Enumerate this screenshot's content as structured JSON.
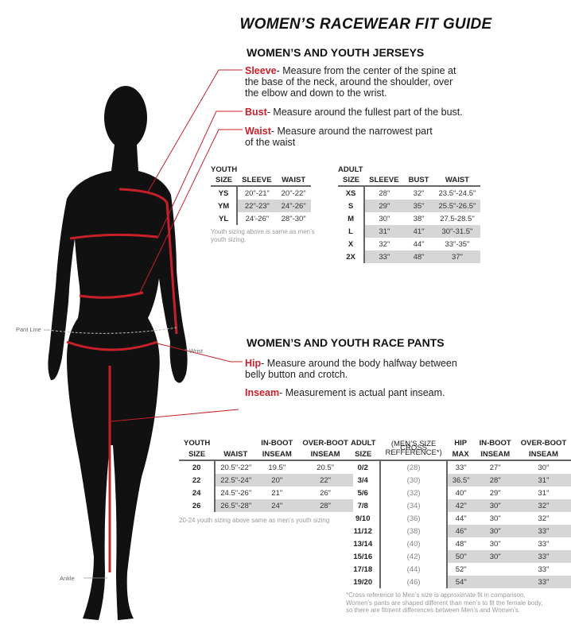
{
  "title": "WOMEN’S RACEWEAR FIT GUIDE",
  "jerseys": {
    "heading": "WOMEN’S AND YOUTH JERSEYS",
    "sleeve": {
      "term": "Sleeve",
      "text": "- Measure from the center of the spine at the base of the neck, around the shoulder, over the elbow and down to the wrist."
    },
    "bust": {
      "term": "Bust",
      "text": "- Measure around the fullest part of the bust."
    },
    "waist": {
      "term": "Waist",
      "text": "- Measure around the narrowest part of the waist"
    },
    "youth": {
      "caption": "YOUTH",
      "headers": [
        "SIZE",
        "SLEEVE",
        "WAIST"
      ],
      "rows": [
        [
          "YS",
          "20\"-21\"",
          "20\"-22\""
        ],
        [
          "YM",
          "22\"-23\"",
          "24\"-26\""
        ],
        [
          "YL",
          "24'-26\"",
          "28\"-30\""
        ]
      ],
      "note": "Youth sizing above is same as men’s youth sizing."
    },
    "adult": {
      "caption": "ADULT",
      "headers": [
        "SIZE",
        "SLEEVE",
        "BUST",
        "WAIST"
      ],
      "rows": [
        [
          "XS",
          "28\"",
          "32\"",
          "23.5\"-24.5\""
        ],
        [
          "S",
          "29\"",
          "35\"",
          "25.5\"-26.5\""
        ],
        [
          "M",
          "30\"",
          "38\"",
          "27.5-28.5\""
        ],
        [
          "L",
          "31\"",
          "41\"",
          "30\"-31.5\""
        ],
        [
          "X",
          "32\"",
          "44\"",
          "33\"-35\""
        ],
        [
          "2X",
          "33\"",
          "48\"",
          "37\""
        ]
      ]
    }
  },
  "pants": {
    "heading": "WOMEN’S AND YOUTH RACE PANTS",
    "hip": {
      "term": "Hip",
      "text": "- Measure around the body halfway between belly button and crotch."
    },
    "inseam": {
      "term": "Inseam",
      "text": "- Measurement is actual pant inseam."
    },
    "youth": {
      "caption": "YOUTH",
      "headers": [
        "SIZE",
        "WAIST",
        "IN-BOOT INSEAM",
        "OVER-BOOT INSEAM"
      ],
      "header_top": [
        "",
        "",
        "IN-BOOT",
        "OVER-BOOT"
      ],
      "header_bottom": [
        "SIZE",
        "WAIST",
        "INSEAM",
        "INSEAM"
      ],
      "rows": [
        [
          "20",
          "20.5\"-22\"",
          "19.5\"",
          "20.5\""
        ],
        [
          "22",
          "22.5\"-24\"",
          "20\"",
          "22\""
        ],
        [
          "24",
          "24.5\"-26\"",
          "21\"",
          "26\""
        ],
        [
          "26",
          "26.5\"-28\"",
          "24\"",
          "28\""
        ]
      ],
      "note": "20-24 youth sizing above same as men’s youth sizing"
    },
    "adult": {
      "caption": "ADULT",
      "cross_ref_label": "(MEN’S SIZE CROSS REFFERENCE*)",
      "header_top": [
        "",
        "",
        "HIP",
        "IN-BOOT",
        "OVER-BOOT"
      ],
      "header_bottom": [
        "SIZE",
        "",
        "MAX",
        "INSEAM",
        "INSEAM"
      ],
      "rows": [
        [
          "0/2",
          "(28)",
          "33\"",
          "27\"",
          "30\""
        ],
        [
          "3/4",
          "(30)",
          "36.5\"",
          "28\"",
          "31\""
        ],
        [
          "5/6",
          "(32)",
          "40\"",
          "29\"",
          "31\""
        ],
        [
          "7/8",
          "(34)",
          "42\"",
          "30\"",
          "32\""
        ],
        [
          "9/10",
          "(36)",
          "44\"",
          "30\"",
          "32\""
        ],
        [
          "11/12",
          "(38)",
          "46\"",
          "30\"",
          "33\""
        ],
        [
          "13/14",
          "(40)",
          "48\"",
          "30\"",
          "33\""
        ],
        [
          "15/16",
          "(42)",
          "50\"",
          "30\"",
          "33\""
        ],
        [
          "17/18",
          "(44)",
          "52\"",
          "",
          "33\""
        ],
        [
          "19/20",
          "(46)",
          "54\"",
          "",
          "33\""
        ]
      ],
      "note": "*Cross reference to Men’s size is approximate fit in comparison. Women’s pants are shaped different than men’s to fit the female body, so there are fitment differences between Men’s and Women’s."
    }
  },
  "figure": {
    "labels": {
      "pant_line": "Pant Line",
      "wrist": "Wrist",
      "ankle": "Ankle"
    }
  },
  "colors": {
    "accent": "#c8202a",
    "silhouette": "#111111",
    "shade": "#d6d6d6"
  }
}
